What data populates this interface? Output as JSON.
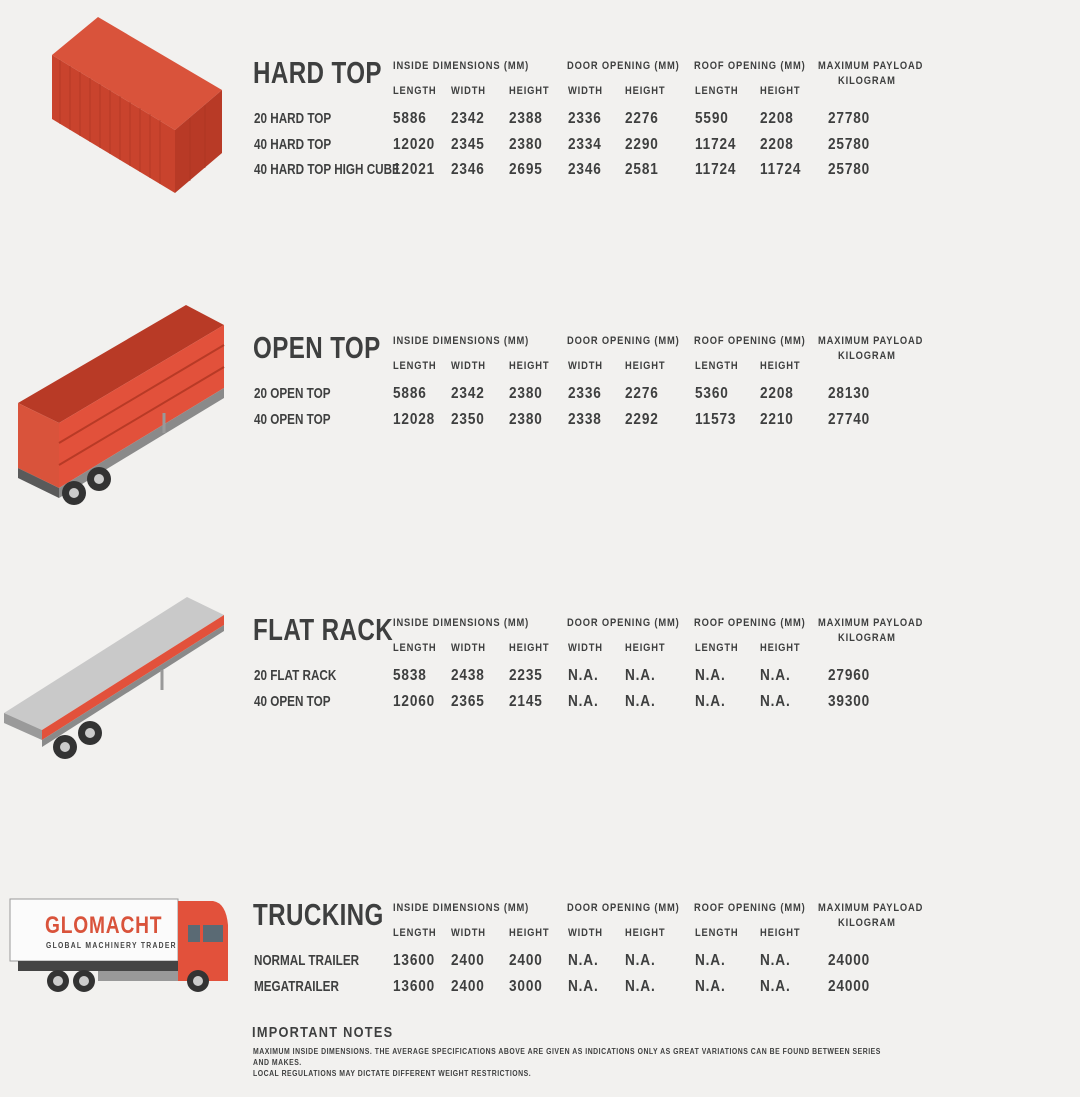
{
  "colors": {
    "text": "#3e3f3f",
    "accent": "#e2513b",
    "background": "#f2f1ef"
  },
  "column_headers": {
    "inside_dimensions": "INSIDE DIMENSIONS (MM)",
    "door_opening": "DOOR OPENING (MM)",
    "roof_opening": "ROOF OPENING (MM)",
    "max_payload": "MAXIMUM PAYLOAD",
    "kilogram": "KILOGRAM",
    "length": "LENGTH",
    "width": "WIDTH",
    "height": "HEIGHT"
  },
  "sections": [
    {
      "title": "HARD TOP",
      "illustration": "shipping-container",
      "rows": [
        {
          "name": "20 HARD TOP",
          "values": [
            "5886",
            "2342",
            "2388",
            "2336",
            "2276",
            "5590",
            "2208",
            "27780"
          ]
        },
        {
          "name": "40 HARD TOP",
          "values": [
            "12020",
            "2345",
            "2380",
            "2334",
            "2290",
            "11724",
            "2208",
            "25780"
          ]
        },
        {
          "name": "40 HARD TOP HIGH CUBE",
          "values": [
            "12021",
            "2346",
            "2695",
            "2346",
            "2581",
            "11724",
            "11724",
            "25780"
          ]
        }
      ]
    },
    {
      "title": "OPEN TOP",
      "illustration": "open-top-trailer",
      "rows": [
        {
          "name": "20 OPEN TOP",
          "values": [
            "5886",
            "2342",
            "2380",
            "2336",
            "2276",
            "5360",
            "2208",
            "28130"
          ]
        },
        {
          "name": "40 OPEN TOP",
          "values": [
            "12028",
            "2350",
            "2380",
            "2338",
            "2292",
            "11573",
            "2210",
            "27740"
          ]
        }
      ]
    },
    {
      "title": "FLAT RACK",
      "illustration": "flat-rack-trailer",
      "rows": [
        {
          "name": "20 FLAT RACK",
          "values": [
            "5838",
            "2438",
            "2235",
            "N.A.",
            "N.A.",
            "N.A.",
            "N.A.",
            "27960"
          ]
        },
        {
          "name": "40 OPEN TOP",
          "values": [
            "12060",
            "2365",
            "2145",
            "N.A.",
            "N.A.",
            "N.A.",
            "N.A.",
            "39300"
          ]
        }
      ]
    },
    {
      "title": "TRUCKING",
      "illustration": "truck",
      "rows": [
        {
          "name": "NORMAL TRAILER",
          "values": [
            "13600",
            "2400",
            "2400",
            "N.A.",
            "N.A.",
            "N.A.",
            "N.A.",
            "24000"
          ]
        },
        {
          "name": "MEGATRAILER",
          "values": [
            "13600",
            "2400",
            "3000",
            "N.A.",
            "N.A.",
            "N.A.",
            "N.A.",
            "24000"
          ]
        }
      ]
    }
  ],
  "truck_logo": {
    "brand": "GLOMACHT",
    "tagline": "GLOBAL MACHINERY TRADER"
  },
  "notes": {
    "title": "IMPORTANT NOTES",
    "line1": "MAXIMUM INSIDE DIMENSIONS. THE AVERAGE SPECIFICATIONS ABOVE ARE GIVEN AS INDICATIONS ONLY AS GREAT VARIATIONS CAN BE FOUND BETWEEN SERIES AND MAKES.",
    "line2": "LOCAL REGULATIONS MAY DICTATE DIFFERENT WEIGHT RESTRICTIONS."
  }
}
